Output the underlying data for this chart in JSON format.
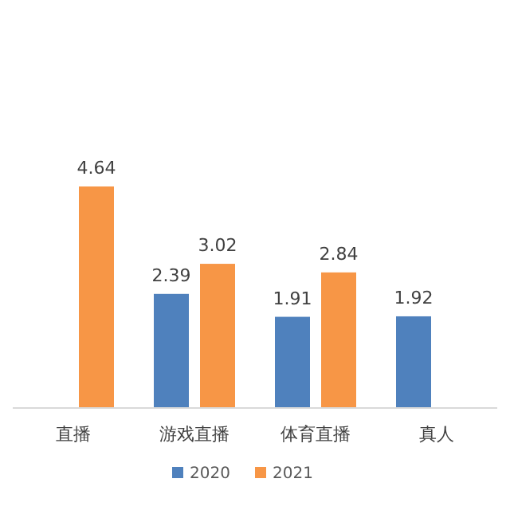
{
  "chart_data": {
    "type": "bar",
    "categories": [
      "直播",
      "游戏直播",
      "体育直播",
      "真人"
    ],
    "series": [
      {
        "name": "2020",
        "color": "#4f81bd",
        "values": [
          null,
          2.39,
          1.91,
          1.92
        ]
      },
      {
        "name": "2021",
        "color": "#f79646",
        "values": [
          4.64,
          3.02,
          2.84,
          null
        ]
      }
    ],
    "data_labels": true,
    "legend": "bottom"
  }
}
